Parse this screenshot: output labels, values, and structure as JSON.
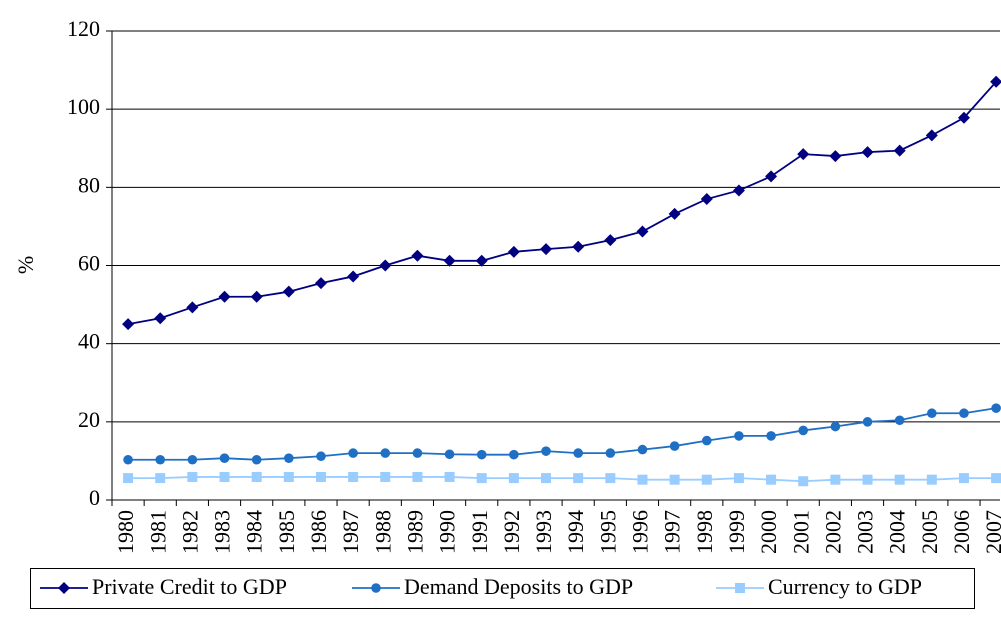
{
  "chart_data": {
    "type": "line",
    "y_label": "%",
    "categories": [
      "1980",
      "1981",
      "1982",
      "1983",
      "1984",
      "1985",
      "1986",
      "1987",
      "1988",
      "1989",
      "1990",
      "1991",
      "1992",
      "1993",
      "1994",
      "1995",
      "1996",
      "1997",
      "1998",
      "1999",
      "2000",
      "2001",
      "2002",
      "2003",
      "2004",
      "2005",
      "2006",
      "2007"
    ],
    "series": [
      {
        "name": "Private Credit to GDP",
        "color": "#000080",
        "marker": "diamond",
        "values": [
          45,
          46.5,
          49.3,
          52,
          52,
          53.3,
          55.5,
          57.2,
          60,
          62.5,
          61.2,
          61.2,
          63.5,
          64.2,
          64.8,
          66.5,
          68.7,
          73.2,
          77,
          79.2,
          82.8,
          88.5,
          88,
          89,
          89.4,
          93.3,
          97.8,
          107
        ]
      },
      {
        "name": "Demand Deposits to GDP",
        "color": "#1f6fc5",
        "marker": "circle",
        "values": [
          10.3,
          10.3,
          10.3,
          10.7,
          10.3,
          10.7,
          11.2,
          12,
          12,
          12,
          11.7,
          11.6,
          11.6,
          12.5,
          12,
          12,
          12.9,
          13.8,
          15.2,
          16.4,
          16.4,
          17.8,
          18.8,
          20,
          20.4,
          22.2,
          22.2,
          23.5
        ]
      },
      {
        "name": "Currency to GDP",
        "color": "#99ccff",
        "marker": "square",
        "values": [
          5.6,
          5.6,
          5.9,
          5.9,
          5.9,
          5.9,
          5.9,
          5.9,
          5.9,
          5.9,
          5.9,
          5.6,
          5.6,
          5.6,
          5.6,
          5.6,
          5.2,
          5.2,
          5.2,
          5.6,
          5.2,
          4.8,
          5.2,
          5.2,
          5.2,
          5.2,
          5.6,
          5.6
        ]
      }
    ],
    "ylim": [
      0,
      120
    ],
    "yticks": [
      0,
      20,
      40,
      60,
      80,
      100,
      120
    ],
    "grid": true,
    "legend": "bottom"
  }
}
